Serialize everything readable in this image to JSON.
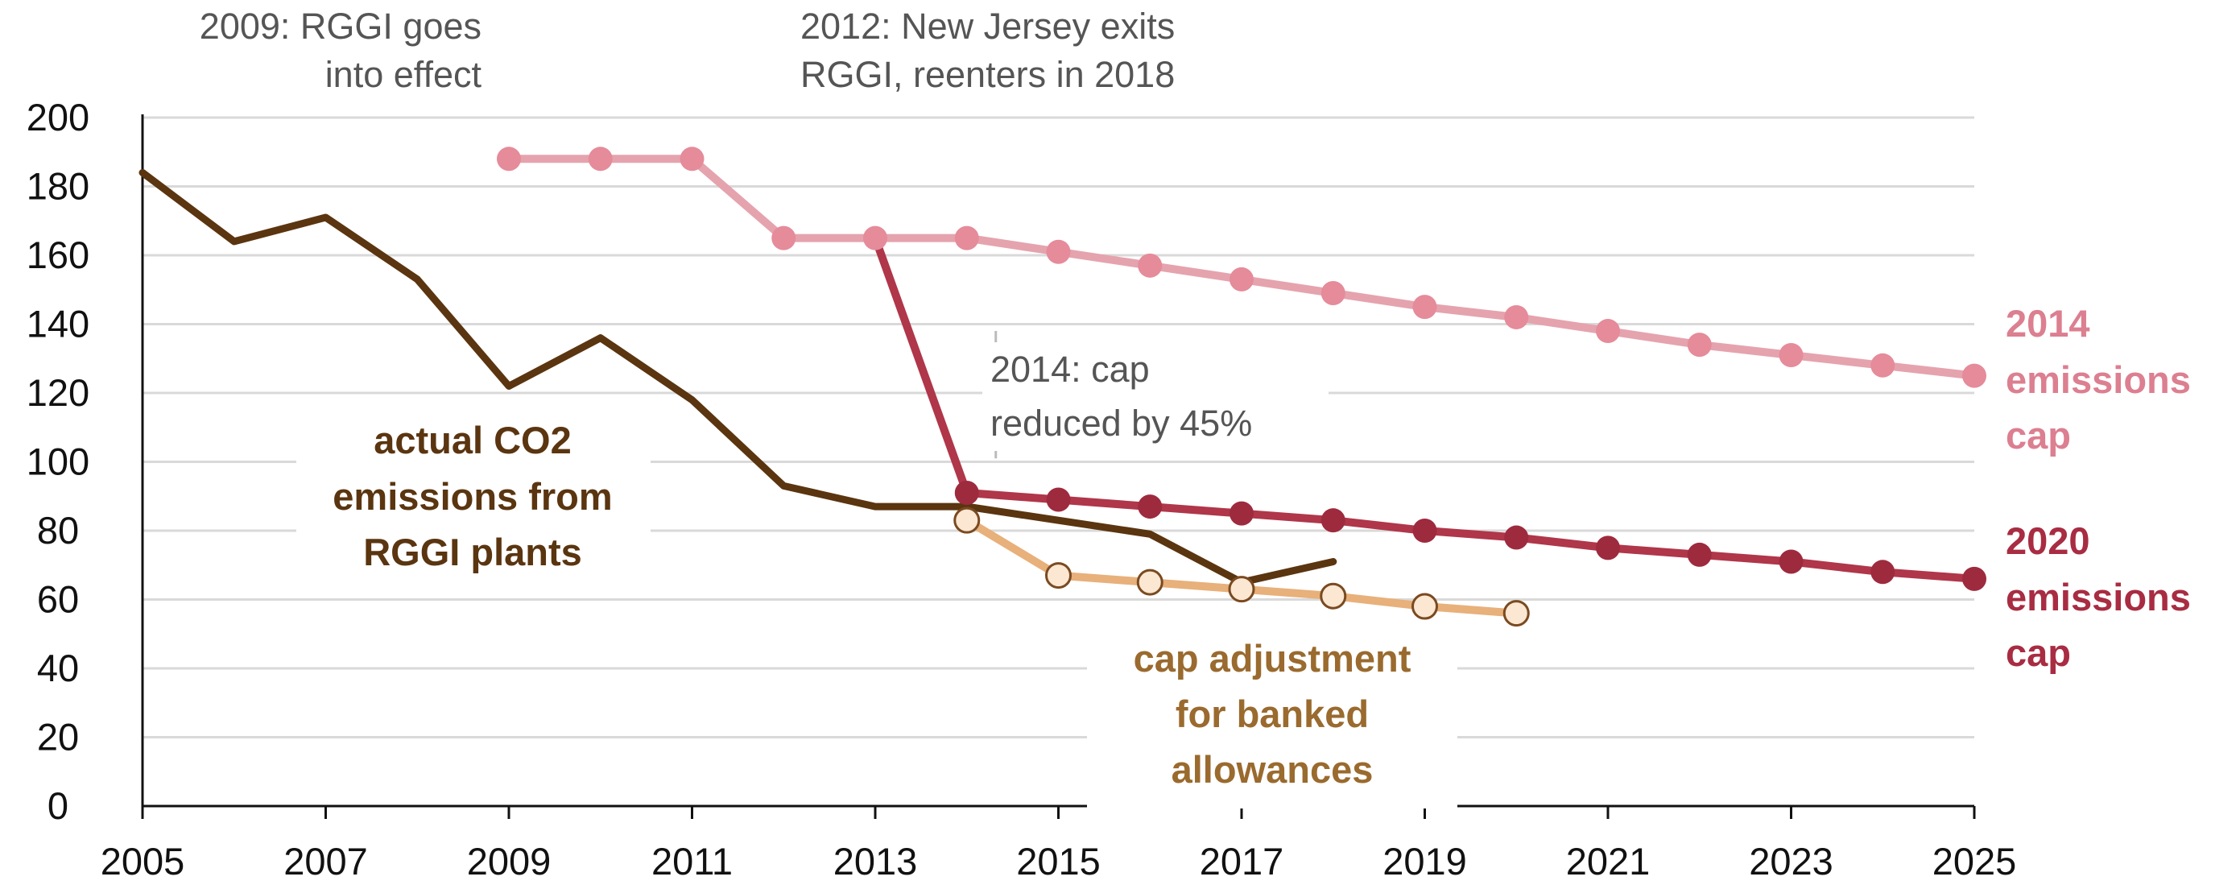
{
  "chart_data": {
    "type": "line",
    "title": "",
    "xlabel": "",
    "ylabel": "",
    "xlim": [
      2005,
      2025
    ],
    "ylim": [
      0,
      200
    ],
    "grid": true,
    "x_ticks": [
      "2005",
      "2007",
      "2009",
      "2011",
      "2013",
      "2015",
      "2017",
      "2019",
      "2021",
      "2023",
      "2025"
    ],
    "y_ticks": [
      "0",
      "20",
      "40",
      "60",
      "80",
      "100",
      "120",
      "140",
      "160",
      "180",
      "200"
    ],
    "series": [
      {
        "key": "actual",
        "label_lines": [
          "actual CO2",
          "emissions from",
          "RGGI plants"
        ],
        "color": "#5a3510",
        "markers": false,
        "x": [
          2005,
          2006,
          2007,
          2008,
          2009,
          2010,
          2011,
          2012,
          2013,
          2014,
          2015,
          2016,
          2017,
          2018
        ],
        "values": [
          184,
          164,
          171,
          153,
          122,
          136,
          118,
          93,
          87,
          87,
          83,
          79,
          65,
          71
        ]
      },
      {
        "key": "cap2014",
        "label_lines": [
          "2014",
          "emissions",
          "cap"
        ],
        "color": "#e5a3ae",
        "label_color": "#dc7f90",
        "marker_fill": "#e58b9a",
        "markers": true,
        "x": [
          2009,
          2010,
          2011,
          2012,
          2013,
          2014,
          2015,
          2016,
          2017,
          2018,
          2019,
          2020,
          2021,
          2022,
          2023,
          2024,
          2025
        ],
        "values": [
          188,
          188,
          188,
          165,
          165,
          165,
          161,
          157,
          153,
          149,
          145,
          142,
          138,
          134,
          131,
          128,
          125
        ]
      },
      {
        "key": "cap2020",
        "label_lines": [
          "2020",
          "emissions",
          "cap"
        ],
        "color": "#b0364a",
        "label_color": "#a82c42",
        "marker_fill": "#9e2a3e",
        "markers": true,
        "x": [
          2013,
          2014,
          2015,
          2016,
          2017,
          2018,
          2019,
          2020,
          2021,
          2022,
          2023,
          2024,
          2025
        ],
        "values": [
          165,
          91,
          89,
          87,
          85,
          83,
          80,
          78,
          75,
          73,
          71,
          68,
          66
        ],
        "marker_from_index": 1
      },
      {
        "key": "adjust",
        "label_lines": [
          "cap adjustment",
          "for banked",
          "allowances"
        ],
        "color": "#e8b07a",
        "label_color": "#9a6a2e",
        "marker_fill": "#fbe7d2",
        "marker_stroke": "#7a4a20",
        "markers": true,
        "x": [
          2014,
          2015,
          2016,
          2017,
          2018,
          2019,
          2020
        ],
        "values": [
          83,
          67,
          65,
          63,
          61,
          58,
          56
        ]
      }
    ],
    "annotations": [
      {
        "key": "rggi",
        "lines": [
          "2009: RGGI goes",
          "into effect"
        ]
      },
      {
        "key": "nj",
        "lines": [
          "2012: New Jersey exits",
          "RGGI, reenters in 2018"
        ]
      },
      {
        "key": "cut",
        "lines": [
          "2014: cap",
          "reduced by 45%"
        ]
      }
    ]
  }
}
